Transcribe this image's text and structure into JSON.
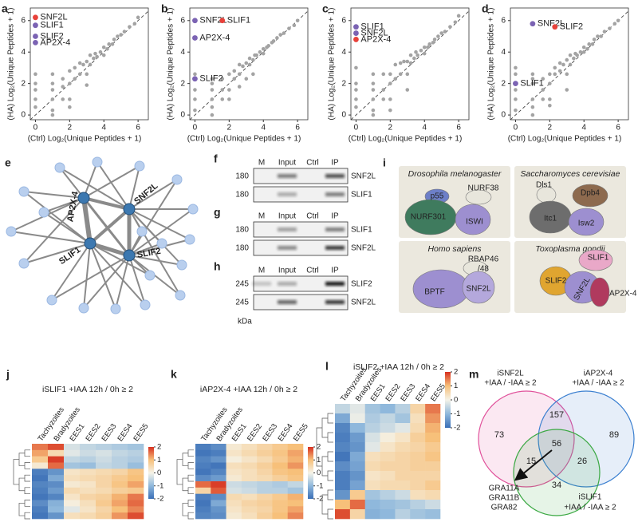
{
  "scatter_panels": [
    {
      "label": "a",
      "xlabel": "(Ctrl) Log₂(Unique Peptides + 1)",
      "ylabel": "(HA) Log₂(Unique Peptides + 1)",
      "xlim": [
        -0.3,
        6.6
      ],
      "ylim": [
        -0.3,
        6.8
      ],
      "xticks": [
        0,
        2,
        4,
        6
      ],
      "yticks": [
        0,
        2,
        4,
        6
      ],
      "color": "#a3a3a3",
      "x": [
        0,
        0,
        0,
        0,
        0,
        1,
        1,
        1,
        1,
        1,
        1.6,
        1.6,
        1.6,
        2,
        2,
        2,
        2.3,
        2.3,
        2.6,
        2.6,
        2.8,
        3,
        3,
        3.2,
        3.2,
        3.4,
        3.5,
        3.6,
        3.8,
        4,
        4,
        4.2,
        4.3,
        4.5,
        4.6,
        4.8,
        5,
        5.2,
        5.5,
        5.8,
        6,
        1,
        2,
        3
      ],
      "y": [
        0.5,
        1,
        1.6,
        2,
        2.6,
        0.3,
        1,
        1.6,
        2,
        2.6,
        1,
        1.8,
        2.3,
        1,
        2,
        2.8,
        2.3,
        3,
        2.6,
        3.3,
        3.2,
        2.6,
        3.4,
        3.2,
        3.8,
        3.6,
        3.9,
        3.7,
        4,
        3.8,
        4.3,
        4.2,
        4.5,
        4.5,
        4.8,
        5,
        5.1,
        5.3,
        5.6,
        5.8,
        6.2,
        0,
        0.5,
        1.9
      ],
      "highlights": [
        {
          "name": "SNF2L",
          "color": "#e8413a",
          "x": 0,
          "y": 6.2
        },
        {
          "name": "SLIF1",
          "color": "#7b63b3",
          "x": 0,
          "y": 5.7
        },
        {
          "name": "SLIF2",
          "color": "#7b63b3",
          "x": 0,
          "y": 5.0
        },
        {
          "name": "AP2X-4",
          "color": "#7b63b3",
          "x": 0,
          "y": 4.6
        }
      ]
    },
    {
      "label": "b",
      "xlabel": "(Ctrl) Log₂(Unique Peptides + 1)",
      "ylabel": "(HA) Log₂(Unique Peptides + 1)",
      "xlim": [
        -0.3,
        6.6
      ],
      "ylim": [
        -0.3,
        6.8
      ],
      "xticks": [
        0,
        2,
        4,
        6
      ],
      "yticks": [
        0,
        2,
        4,
        6
      ],
      "color": "#a3a3a3",
      "x": [
        0,
        0,
        0,
        0,
        0,
        1,
        1,
        1,
        1,
        1,
        1.6,
        1.6,
        1.6,
        2,
        2,
        2,
        2.3,
        2.3,
        2.6,
        2.6,
        2.8,
        3,
        3,
        3.2,
        3.2,
        3.4,
        3.5,
        3.6,
        3.8,
        4,
        4,
        4.2,
        4.3,
        4.5,
        4.6,
        4.8,
        5,
        5.2,
        5.5,
        5.8,
        6,
        1,
        2.6,
        3.4
      ],
      "y": [
        0.3,
        1,
        1.6,
        2.3,
        2.6,
        0.5,
        1,
        1.6,
        2,
        2.3,
        1,
        1.6,
        2.3,
        1,
        1.6,
        2.6,
        2.3,
        2.8,
        2.6,
        3.2,
        3.1,
        2.3,
        3.3,
        3.2,
        3.6,
        3.5,
        3.8,
        3.8,
        4,
        3.9,
        4.2,
        4.3,
        4.4,
        4.6,
        4.7,
        4.9,
        5.1,
        5.2,
        5.5,
        5.7,
        6.0,
        0,
        1.8,
        2.6
      ],
      "highlights": [
        {
          "name": "SNF2L",
          "color": "#7b63b3",
          "x": 0,
          "y": 6.0
        },
        {
          "name": "SLIF1",
          "color": "#e8413a",
          "x": 1.6,
          "y": 6.0
        },
        {
          "name": "AP2X-4",
          "color": "#7b63b3",
          "x": 0,
          "y": 4.9
        },
        {
          "name": "SLIF2",
          "color": "#7b63b3",
          "x": 0,
          "y": 2.3
        }
      ]
    },
    {
      "label": "c",
      "xlabel": "(Ctrl) Log₂(Unique Peptides + 1)",
      "ylabel": "(HA) Log₂(Unique Peptides + 1)",
      "xlim": [
        -0.3,
        6.6
      ],
      "ylim": [
        -0.3,
        6.8
      ],
      "xticks": [
        0,
        2,
        4,
        6
      ],
      "yticks": [
        0,
        2,
        4,
        6
      ],
      "color": "#a3a3a3",
      "x": [
        0,
        0,
        0,
        0,
        0,
        1,
        1,
        1,
        1,
        1,
        1.6,
        1.6,
        1.6,
        2,
        2,
        2,
        2.3,
        2.3,
        2.6,
        2.6,
        2.8,
        3,
        3,
        3.2,
        3.2,
        3.4,
        3.5,
        3.6,
        3.8,
        4,
        4,
        4.2,
        4.3,
        4.5,
        4.6,
        4.8,
        5,
        5.2,
        5.5,
        5.8,
        6,
        1,
        2,
        3
      ],
      "y": [
        0.5,
        1,
        1.6,
        2,
        3,
        0.3,
        1,
        1.6,
        2,
        2.6,
        1,
        1.6,
        2.6,
        1,
        2,
        2.6,
        2.3,
        3.2,
        2.6,
        3.3,
        3.4,
        2.6,
        3.4,
        3.3,
        3.8,
        3.6,
        4,
        3.8,
        4.1,
        3.9,
        4.3,
        4.3,
        4.5,
        4.6,
        4.8,
        5,
        5.2,
        5.3,
        5.6,
        5.9,
        6.3,
        0,
        0.3,
        1.6
      ],
      "highlights": [
        {
          "name": "SLIF1",
          "color": "#7b63b3",
          "x": 0,
          "y": 5.6
        },
        {
          "name": "SNF2L",
          "color": "#7b63b3",
          "x": 0,
          "y": 5.2
        },
        {
          "name": "AP2X-4",
          "color": "#e8413a",
          "x": 0,
          "y": 4.8
        }
      ]
    },
    {
      "label": "d",
      "xlabel": "(Ctrl) Log₂(Unique Peptides + 1)",
      "ylabel": "(HA) Log₂(Unique Peptides + 1)",
      "xlim": [
        -0.3,
        6.6
      ],
      "ylim": [
        -0.3,
        6.8
      ],
      "xticks": [
        0,
        2,
        4,
        6
      ],
      "yticks": [
        0,
        2,
        4,
        6
      ],
      "color": "#a3a3a3",
      "x": [
        0,
        0,
        0,
        0,
        0,
        1,
        1,
        1,
        1,
        1,
        1.6,
        1.6,
        1.6,
        2,
        2,
        2,
        2.3,
        2.3,
        2.6,
        2.6,
        2.8,
        3,
        3,
        3.2,
        3.2,
        3.4,
        3.5,
        3.6,
        3.8,
        4,
        4,
        4.2,
        4.3,
        4.5,
        4.6,
        4.8,
        5,
        5.2,
        5.5,
        5.8,
        6,
        1,
        2,
        3
      ],
      "y": [
        0.3,
        1,
        1.6,
        2.6,
        3,
        0.5,
        1,
        2,
        2.3,
        2.6,
        1,
        1.6,
        2.3,
        1,
        2,
        2.6,
        2.6,
        3,
        2.8,
        3.3,
        3.2,
        2.6,
        3.5,
        3.2,
        3.8,
        3.6,
        3.9,
        3.8,
        4,
        4.0,
        4.3,
        4.2,
        4.5,
        4.5,
        4.8,
        5,
        5.0,
        5.3,
        5.5,
        5.8,
        6.0,
        0,
        0.6,
        1.6
      ],
      "highlights": [
        {
          "name": "SNF2L",
          "color": "#7b63b3",
          "x": 1,
          "y": 5.8
        },
        {
          "name": "SLIF2",
          "color": "#e8413a",
          "x": 2.3,
          "y": 5.6
        },
        {
          "name": "SLIF1",
          "color": "#7b63b3",
          "x": 0,
          "y": 2.0
        }
      ]
    }
  ],
  "network": {
    "label": "e",
    "nodes": [
      "AP2X-4",
      "SNF2L",
      "SLIF1",
      "SLIF2"
    ]
  },
  "blots": [
    {
      "label": "f",
      "lanes": [
        "M",
        "Input",
        "Ctrl",
        "IP"
      ],
      "rows": [
        {
          "marker": "180",
          "protein": "SNF2L"
        },
        {
          "marker": "180",
          "protein": "SLIF1"
        }
      ]
    },
    {
      "label": "g",
      "lanes": [
        "M",
        "Input",
        "Ctrl",
        "IP"
      ],
      "rows": [
        {
          "marker": "180",
          "protein": "SLIF1"
        },
        {
          "marker": "180",
          "protein": "SNF2L"
        }
      ]
    },
    {
      "label": "h",
      "lanes": [
        "M",
        "Input",
        "Ctrl",
        "IP"
      ],
      "rows": [
        {
          "marker": "245",
          "protein": "SLIF2"
        },
        {
          "marker": "245",
          "protein": "SNF2L"
        }
      ],
      "unit": "kDa"
    }
  ],
  "complexes": {
    "label": "i",
    "boxes": [
      {
        "species": "Drosophila melanogaster",
        "subunits": [
          "p55",
          "NURF38",
          "NURF301",
          "ISWI"
        ]
      },
      {
        "species": "Saccharomyces cerevisiae",
        "subunits": [
          "Dls1",
          "Dpb4",
          "Itc1",
          "Isw2"
        ]
      },
      {
        "species": "Homo sapiens",
        "subunits": [
          "RBAP46",
          "/48",
          "BPTF",
          "SNF2L"
        ]
      },
      {
        "species": "Toxoplasma gondii",
        "subunits": [
          "SLIF1",
          "SLIF2",
          "SNF2L",
          "AP2X-4"
        ]
      }
    ]
  },
  "heatmaps": [
    {
      "label": "j",
      "title": "iSLIF1 +IAA 12h / 0h ≥ 2",
      "columns": [
        "Tachyzoites",
        "Bradyzoites",
        "EES1",
        "EES2",
        "EES3",
        "EES4",
        "EES5"
      ],
      "clim": [
        -2,
        2
      ],
      "colorbar_ticks": [
        2,
        1,
        0,
        -1,
        -2
      ],
      "rows": [
        [
          1.5,
          1.8,
          -0.3,
          -0.5,
          -0.6,
          -0.7,
          -0.8
        ],
        [
          1.2,
          0.5,
          -0.2,
          -0.4,
          -0.3,
          -0.5,
          -0.6
        ],
        [
          0.8,
          1.9,
          -0.5,
          -0.6,
          -0.4,
          -0.6,
          -0.7
        ],
        [
          0.2,
          1.6,
          -0.8,
          -0.9,
          -0.5,
          -0.6,
          -0.9
        ],
        [
          -1.8,
          -1.5,
          0.3,
          0.4,
          0.5,
          0.6,
          0.9
        ],
        [
          -1.9,
          -1.2,
          0.4,
          0.5,
          0.6,
          0.8,
          1.0
        ],
        [
          -1.7,
          -1.6,
          0.2,
          0.3,
          0.6,
          0.9,
          1.2
        ],
        [
          -1.8,
          -1.4,
          0.5,
          0.4,
          0.5,
          0.7,
          0.8
        ],
        [
          -1.9,
          -1.7,
          0.3,
          0.6,
          0.7,
          1.1,
          1.5
        ],
        [
          -1.6,
          -1.1,
          0.1,
          0.4,
          0.8,
          1.2,
          1.6
        ],
        [
          -1.8,
          -1.0,
          -0.2,
          0.3,
          0.6,
          1.0,
          1.4
        ],
        [
          -1.9,
          -1.5,
          0.4,
          0.5,
          0.7,
          1.3,
          1.8
        ]
      ]
    },
    {
      "label": "k",
      "title": "iAP2X-4 +IAA 12h / 0h ≥ 2",
      "columns": [
        "Tachyzoites",
        "Bradyzoites",
        "EES1",
        "EES2",
        "EES3",
        "EES4",
        "EES5"
      ],
      "clim": [
        -2,
        2
      ],
      "colorbar_ticks": [
        2,
        1,
        0,
        -1,
        -2
      ],
      "rows": [
        [
          -1.8,
          -1.6,
          0.2,
          0.4,
          0.6,
          0.8,
          1.0
        ],
        [
          -1.9,
          -1.8,
          0.3,
          0.5,
          0.7,
          0.9,
          1.2
        ],
        [
          -1.7,
          -1.5,
          0.1,
          0.3,
          0.5,
          0.8,
          1.1
        ],
        [
          -1.8,
          -1.9,
          0.4,
          0.5,
          0.7,
          1.0,
          1.3
        ],
        [
          -1.9,
          -1.7,
          0.3,
          0.4,
          0.6,
          0.9,
          1.0
        ],
        [
          -1.6,
          -1.4,
          0.2,
          0.4,
          0.5,
          0.7,
          0.9
        ],
        [
          1.6,
          1.9,
          -0.4,
          -0.5,
          -0.6,
          -0.7,
          -0.5
        ],
        [
          0.6,
          1.7,
          -0.3,
          -0.4,
          -0.6,
          -0.6,
          -0.8
        ],
        [
          -1.8,
          -1.6,
          0.5,
          0.4,
          0.6,
          0.8,
          1.1
        ],
        [
          -1.9,
          -1.2,
          0.4,
          0.6,
          0.7,
          0.9,
          1.0
        ],
        [
          -1.8,
          -1.5,
          0.3,
          0.5,
          0.6,
          0.9,
          1.2
        ],
        [
          -1.7,
          -1.6,
          0.2,
          0.4,
          0.7,
          1.0,
          1.4
        ]
      ]
    },
    {
      "label": "l",
      "title": "iSLIF2 +IAA 12h / 0h ≥ 2",
      "columns": [
        "Tachyzoites",
        "Bradyzoites",
        "EES1",
        "EES2",
        "EES3",
        "EES4",
        "EES5"
      ],
      "clim": [
        -2,
        2
      ],
      "colorbar_ticks": [
        2,
        1,
        0,
        -1,
        -2
      ],
      "rows": [
        [
          -0.5,
          -0.2,
          -0.8,
          -1.0,
          -0.6,
          0.6,
          1.5
        ],
        [
          -1.2,
          -0.1,
          -0.7,
          -0.5,
          -0.8,
          0.4,
          1.3
        ],
        [
          -1.7,
          -1.0,
          -0.6,
          -0.4,
          -0.2,
          0.5,
          1.1
        ],
        [
          -1.8,
          -1.4,
          -0.3,
          0.1,
          0.3,
          0.7,
          1.0
        ],
        [
          -1.7,
          -1.5,
          -0.2,
          0.3,
          0.5,
          0.6,
          0.8
        ],
        [
          -1.9,
          -1.2,
          0.4,
          0.5,
          0.6,
          0.7,
          0.9
        ],
        [
          -1.6,
          -1.3,
          0.5,
          0.6,
          0.6,
          0.7,
          0.7
        ],
        [
          -1.8,
          -1.5,
          0.3,
          0.4,
          0.6,
          0.6,
          0.6
        ],
        [
          -1.8,
          -1.3,
          0.4,
          0.5,
          0.5,
          0.6,
          0.8
        ],
        [
          -1.5,
          0.8,
          -0.8,
          -0.6,
          -0.4,
          0.4,
          0.5
        ],
        [
          1.0,
          1.6,
          -1.0,
          -0.9,
          -0.8,
          -0.6,
          -0.4
        ],
        [
          1.8,
          0.6,
          -1.1,
          -1.0,
          -0.6,
          -0.8,
          -0.9
        ]
      ]
    }
  ],
  "venn": {
    "label": "m",
    "sets": [
      {
        "name": "iSNF2L",
        "criterion": "+IAA / -IAA ≥ 2",
        "color": "#e0509a"
      },
      {
        "name": "iAP2X-4",
        "criterion": "+IAA / -IAA ≥ 2",
        "color": "#3a7fd0"
      },
      {
        "name": "iSLIF1",
        "criterion": "+IAA / -IAA ≥ 2",
        "color": "#3aa842"
      }
    ],
    "counts": [
      73,
      157,
      89,
      56,
      15,
      26,
      34
    ],
    "genes": [
      "GRA11A",
      "GRA11B",
      "GRA82"
    ]
  }
}
